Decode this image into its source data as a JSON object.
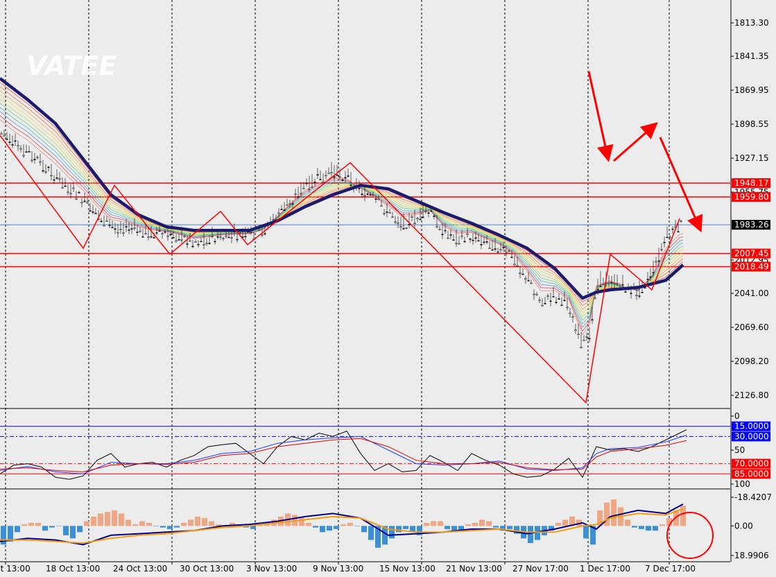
{
  "watermark": "VATEE",
  "colors": {
    "background": "#ececec",
    "up_candle": "#1e6e3a",
    "down_candle": "#c0392b",
    "level_line": "#ff0000",
    "price_line": "#4a7fd6",
    "slow_ma": "#1a1a6e",
    "annotation": "#ff0000",
    "hist_pos": "#3b8fd6",
    "hist_neg": "#f0a583",
    "macd_line": "#00008b",
    "signal_line": "#f39c12",
    "stoch_main": "#000000",
    "stoch_blue": "#1e3cff",
    "stoch_red": "#e00000"
  },
  "chart_data": [
    {
      "type": "line",
      "panel": "price",
      "ylim": [
        1805,
        2140
      ],
      "y_ticks": [
        "2126.80",
        "2098.20",
        "2069.60",
        "2041.00",
        "2012.95",
        "1983.26",
        "1955.75",
        "1927.15",
        "1898.55",
        "1869.95",
        "1841.35",
        "1813.30"
      ],
      "levels": [
        {
          "label": "2018.49",
          "value": 2018.49,
          "style": "label-red"
        },
        {
          "label": "2007.45",
          "value": 2007.45,
          "style": "label-red"
        },
        {
          "label": "1983.26",
          "value": 1983.26,
          "style": "current"
        },
        {
          "label": "1959.80",
          "value": 1959.8,
          "style": "label-red"
        },
        {
          "label": "1948.17",
          "value": 1948.17,
          "style": "label-red"
        }
      ],
      "x_labels": [
        "ct 13:00",
        "18 Oct 13:00",
        "24 Oct 13:00",
        "30 Oct 13:00",
        "3 Nov 13:00",
        "9 Nov 13:00",
        "15 Nov 13:00",
        "21 Nov 13:00",
        "27 Nov 17:00",
        "1 Dec 17:00",
        "7 Dec 17:00"
      ],
      "series": [
        {
          "x": [
            0,
            20,
            40,
            60,
            80,
            100,
            120,
            140,
            160,
            180,
            200,
            220,
            240,
            260,
            280,
            300,
            320,
            340,
            360,
            380,
            400,
            420,
            440,
            460,
            480,
            500,
            520,
            540,
            560,
            580,
            600,
            620,
            640,
            660,
            680,
            700,
            720,
            740,
            760,
            780,
            800,
            820,
            840,
            850,
            860,
            880,
            900,
            920,
            940,
            960,
            980
          ],
          "values": [
            1905,
            1915,
            1922,
            1932,
            1942,
            1953,
            1962,
            1975,
            1985,
            1985,
            1988,
            1990,
            1990,
            1993,
            1997,
            1995,
            1993,
            1992,
            1992,
            1988,
            1975,
            1962,
            1950,
            1944,
            1938,
            1942,
            1953,
            1962,
            1972,
            1982,
            1978,
            1972,
            1988,
            1995,
            1992,
            1997,
            2002,
            2010,
            2028,
            2047,
            2044,
            2050,
            2085,
            2075,
            2033,
            2028,
            2035,
            2040,
            2024,
            1995,
            1983
          ]
        },
        {
          "x": [
            0,
            40,
            80,
            120,
            160,
            200,
            240,
            280,
            320,
            360,
            400,
            440,
            480,
            520,
            560,
            600,
            640,
            680,
            720,
            760,
            800,
            840,
            860,
            880,
            920,
            960,
            985
          ],
          "values": [
            1860,
            1878,
            1898,
            1928,
            1958,
            1975,
            1985,
            1988,
            1988,
            1988,
            1980,
            1968,
            1958,
            1950,
            1953,
            1963,
            1973,
            1982,
            1992,
            2003,
            2020,
            2045,
            2040,
            2038,
            2036,
            2030,
            2017
          ]
        }
      ],
      "zigzag": {
        "x": [
          0,
          120,
          165,
          245,
          318,
          357,
          505,
          845,
          880,
          940,
          980
        ],
        "values": [
          1908,
          2003,
          1950,
          2008,
          1972,
          2000,
          1931,
          2133,
          2008,
          2038,
          1978
        ]
      }
    },
    {
      "type": "line",
      "panel": "stochastic",
      "ylim": [
        0,
        100
      ],
      "y_ticks": [
        "100",
        "50",
        "0"
      ],
      "levels": [
        {
          "label": "85.0000",
          "value": 85,
          "style": "label-red"
        },
        {
          "label": "70.0000",
          "value": 70,
          "style": "label-red"
        },
        {
          "label": "30.0000",
          "value": 30,
          "style": "label-blue"
        },
        {
          "label": "15.0000",
          "value": 15,
          "style": "label-blue"
        }
      ],
      "series": [
        {
          "x": [
            0,
            20,
            40,
            60,
            80,
            100,
            120,
            140,
            160,
            180,
            200,
            220,
            240,
            260,
            280,
            300,
            320,
            340,
            360,
            380,
            400,
            420,
            440,
            460,
            480,
            500,
            520,
            540,
            560,
            580,
            600,
            620,
            640,
            660,
            680,
            700,
            720,
            740,
            760,
            780,
            800,
            820,
            840,
            860,
            880,
            900,
            920,
            940,
            960,
            980,
            990
          ],
          "values": [
            85,
            72,
            70,
            75,
            90,
            93,
            88,
            65,
            55,
            75,
            70,
            68,
            75,
            65,
            58,
            45,
            42,
            40,
            55,
            70,
            45,
            30,
            35,
            25,
            30,
            22,
            55,
            80,
            70,
            82,
            80,
            58,
            68,
            80,
            55,
            65,
            72,
            85,
            90,
            88,
            78,
            62,
            90,
            45,
            50,
            48,
            52,
            45,
            35,
            25,
            20
          ]
        },
        {
          "x": [
            0,
            40,
            80,
            120,
            160,
            200,
            240,
            280,
            320,
            360,
            400,
            440,
            480,
            520,
            560,
            600,
            640,
            680,
            720,
            760,
            800,
            840,
            860,
            880,
            920,
            960,
            990
          ],
          "values": [
            80,
            74,
            82,
            85,
            68,
            70,
            70,
            65,
            55,
            52,
            40,
            35,
            32,
            30,
            50,
            70,
            72,
            70,
            66,
            78,
            80,
            76,
            55,
            48,
            46,
            38,
            28
          ]
        },
        {
          "x": [
            0,
            40,
            80,
            120,
            160,
            200,
            240,
            280,
            320,
            360,
            400,
            440,
            480,
            520,
            560,
            600,
            640,
            680,
            720,
            760,
            800,
            840,
            860,
            880,
            920,
            960,
            990
          ],
          "values": [
            78,
            76,
            80,
            82,
            72,
            70,
            71,
            68,
            58,
            55,
            45,
            40,
            35,
            33,
            45,
            65,
            70,
            70,
            68,
            76,
            79,
            78,
            60,
            52,
            48,
            43,
            36
          ]
        }
      ]
    },
    {
      "type": "bar",
      "panel": "macd",
      "ylim": [
        -18.4207,
        18.9906
      ],
      "y_ticks": [
        "18.9906",
        "0.00",
        "-18.4207"
      ],
      "histogram": {
        "x": [
          5,
          15,
          25,
          35,
          45,
          55,
          65,
          75,
          85,
          95,
          105,
          115,
          125,
          135,
          145,
          155,
          165,
          175,
          185,
          195,
          205,
          215,
          225,
          235,
          245,
          255,
          265,
          275,
          285,
          295,
          305,
          315,
          325,
          335,
          345,
          355,
          365,
          375,
          385,
          395,
          405,
          415,
          425,
          435,
          445,
          455,
          465,
          475,
          485,
          495,
          505,
          515,
          525,
          535,
          545,
          555,
          565,
          575,
          585,
          595,
          605,
          615,
          625,
          635,
          645,
          655,
          665,
          675,
          685,
          695,
          705,
          715,
          725,
          735,
          745,
          755,
          765,
          775,
          785,
          795,
          805,
          815,
          825,
          835,
          845,
          855,
          865,
          875,
          885,
          895,
          905,
          915,
          925,
          935,
          945,
          955,
          965,
          975,
          985
        ],
        "values": [
          12,
          10,
          4,
          -1,
          -2,
          -2,
          3,
          1,
          0,
          6,
          8,
          4,
          -3,
          -6,
          -8,
          -9,
          -10,
          -8,
          -4,
          -1,
          -3,
          -2,
          0,
          1,
          2,
          1,
          -2,
          -4,
          -6,
          -5,
          -3,
          -1,
          0,
          -2,
          -1,
          1,
          2,
          -1,
          -2,
          -4,
          -6,
          -8,
          -7,
          -6,
          -2,
          1,
          4,
          3,
          2,
          -1,
          -2,
          0,
          4,
          9,
          14,
          12,
          8,
          4,
          2,
          4,
          6,
          -2,
          -3,
          -3,
          2,
          4,
          3,
          -1,
          -2,
          -4,
          -3,
          1,
          3,
          2,
          5,
          8,
          11,
          9,
          6,
          3,
          -2,
          -4,
          -6,
          -4,
          8,
          12,
          -10,
          -15,
          -17,
          -12,
          -4,
          1,
          2,
          3,
          3,
          -1,
          -5,
          -10,
          -13
        ]
      },
      "series": [
        {
          "x": [
            0,
            40,
            80,
            120,
            160,
            200,
            240,
            280,
            320,
            360,
            400,
            440,
            480,
            520,
            560,
            600,
            640,
            680,
            720,
            760,
            800,
            840,
            860,
            880,
            920,
            960,
            985
          ],
          "values": [
            10,
            8,
            9,
            12,
            6,
            5,
            4,
            3,
            0,
            -1,
            -3,
            -6,
            -8,
            -5,
            6,
            5,
            4,
            2,
            2,
            5,
            2,
            -2,
            2,
            -6,
            -10,
            -8,
            -14
          ]
        },
        {
          "x": [
            0,
            40,
            80,
            120,
            160,
            200,
            240,
            280,
            320,
            360,
            400,
            440,
            480,
            520,
            560,
            600,
            640,
            680,
            720,
            760,
            800,
            840,
            860,
            880,
            920,
            960,
            985
          ],
          "values": [
            9,
            9,
            10,
            11,
            8,
            6,
            5,
            3,
            1,
            0,
            -2,
            -4,
            -6,
            -5,
            2,
            4,
            4,
            3,
            2,
            4,
            4,
            0,
            -1,
            -5,
            -8,
            -7,
            -11
          ]
        }
      ]
    }
  ]
}
